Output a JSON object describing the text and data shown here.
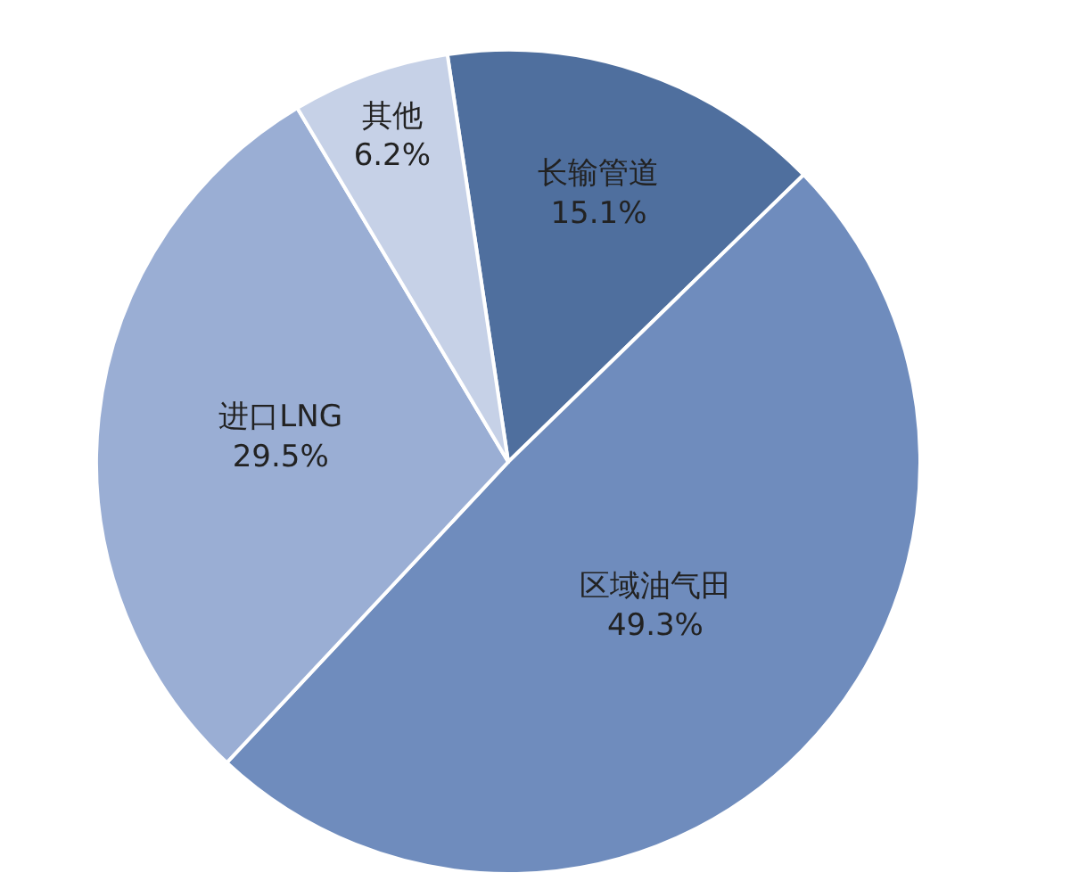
{
  "chart_data": {
    "type": "pie",
    "categories": [
      "长输管道",
      "区域油气田",
      "进口LNG",
      "其他"
    ],
    "values": [
      15.1,
      49.3,
      29.5,
      6.2
    ],
    "value_labels": [
      "15.1%",
      "49.3%",
      "29.5%",
      "6.2%"
    ],
    "colors": [
      "#4f6f9e",
      "#6f8cbd",
      "#9aaed4",
      "#c6d1e7"
    ],
    "legend": false
  }
}
